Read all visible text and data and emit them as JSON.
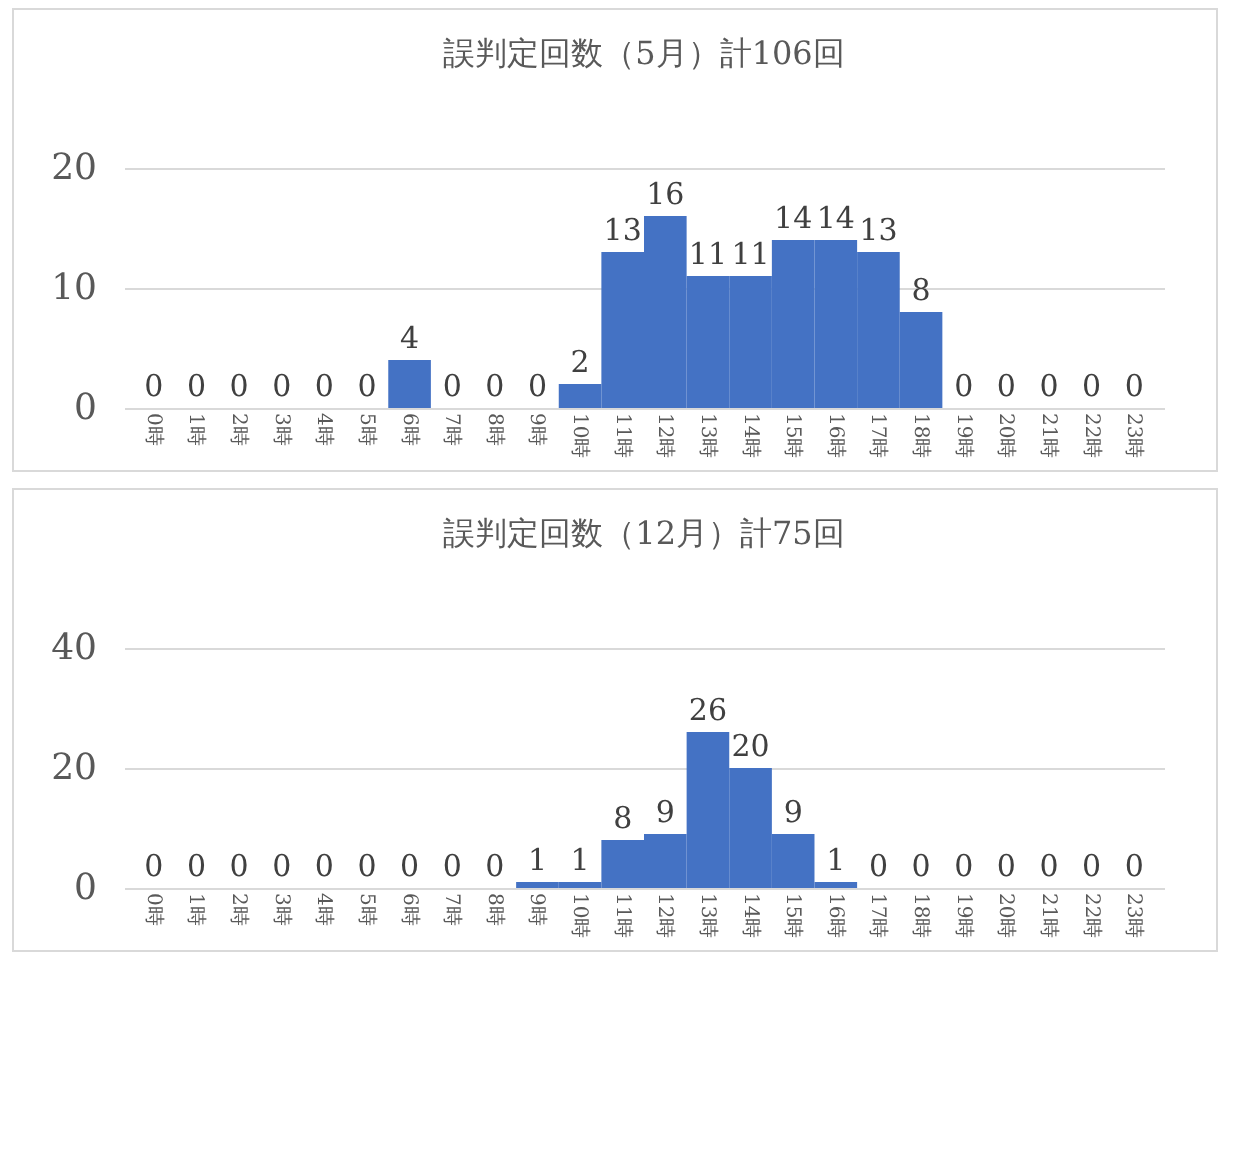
{
  "chart_data": [
    {
      "type": "bar",
      "title": "誤判定回数（5月）計106回",
      "categories": [
        "0時",
        "1時",
        "2時",
        "3時",
        "4時",
        "5時",
        "6時",
        "7時",
        "8時",
        "9時",
        "10時",
        "11時",
        "12時",
        "13時",
        "14時",
        "15時",
        "16時",
        "17時",
        "18時",
        "19時",
        "20時",
        "21時",
        "22時",
        "23時"
      ],
      "values": [
        0,
        0,
        0,
        0,
        0,
        0,
        4,
        0,
        0,
        0,
        2,
        13,
        16,
        11,
        11,
        14,
        14,
        13,
        8,
        0,
        0,
        0,
        0,
        0
      ],
      "color": "#4472c4",
      "ylim": [
        0,
        20
      ],
      "yticks": [
        0,
        10,
        20
      ],
      "grid": "y",
      "data_labels": true
    },
    {
      "type": "bar",
      "title": "誤判定回数（12月）計75回",
      "categories": [
        "0時",
        "1時",
        "2時",
        "3時",
        "4時",
        "5時",
        "6時",
        "7時",
        "8時",
        "9時",
        "10時",
        "11時",
        "12時",
        "13時",
        "14時",
        "15時",
        "16時",
        "17時",
        "18時",
        "19時",
        "20時",
        "21時",
        "22時",
        "23時"
      ],
      "values": [
        0,
        0,
        0,
        0,
        0,
        0,
        0,
        0,
        0,
        1,
        1,
        8,
        9,
        26,
        20,
        9,
        1,
        0,
        0,
        0,
        0,
        0,
        0,
        0
      ],
      "color": "#4472c4",
      "ylim": [
        0,
        40
      ],
      "yticks": [
        0,
        20,
        40
      ],
      "grid": "y",
      "data_labels": true
    }
  ]
}
